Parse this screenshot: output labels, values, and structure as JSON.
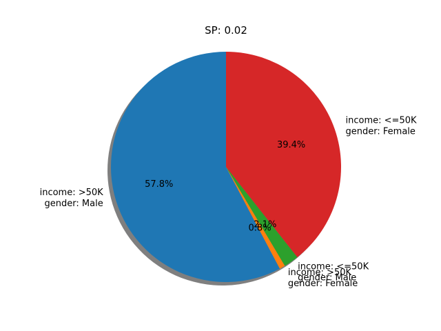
{
  "chart_data": {
    "type": "pie",
    "title": "SP: 0.02",
    "start_angle_deg": 90,
    "direction": "counterclockwise",
    "shadow": true,
    "slices": [
      {
        "label_lines": [
          "income: >50K",
          "gender: Male"
        ],
        "value": 57.8,
        "pct_label": "57.8%",
        "color": "#1f77b4"
      },
      {
        "label_lines": [
          "income: >50K",
          "gender: Female"
        ],
        "value": 0.8,
        "pct_label": "0.8%",
        "color": "#ff7f0e"
      },
      {
        "label_lines": [
          "income: <=50K",
          "gender: Male"
        ],
        "value": 2.1,
        "pct_label": "2.1%",
        "color": "#2ca02c"
      },
      {
        "label_lines": [
          "income: <=50K",
          "gender: Female"
        ],
        "value": 39.4,
        "pct_label": "39.4%",
        "color": "#d62728"
      }
    ]
  }
}
